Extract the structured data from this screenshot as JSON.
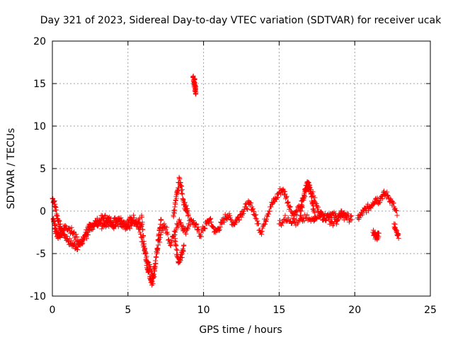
{
  "chart_data": {
    "type": "scatter",
    "title": "Day 321 of 2023, Sidereal Day-to-day VTEC variation (SDTVAR) for receiver ucak",
    "xlabel": "GPS time / hours",
    "ylabel": "SDTVAR / TECUs",
    "xlim": [
      0,
      25
    ],
    "ylim": [
      -10,
      20
    ],
    "xticks": [
      0,
      5,
      10,
      15,
      20,
      25
    ],
    "yticks": [
      -10,
      -5,
      0,
      5,
      10,
      15,
      20
    ],
    "grid": true,
    "marker": "+",
    "colors": {
      "series": "#ff0000",
      "grid": "#a0a0a0",
      "axis": "#000000"
    },
    "series": [
      {
        "name": "SDTVAR",
        "segments": [
          {
            "x": [
              0.0,
              0.1,
              0.2,
              0.3,
              0.4,
              0.5,
              0.6,
              0.8,
              1.0,
              1.2,
              1.4,
              1.6,
              1.8,
              2.0,
              2.2,
              2.4,
              2.6,
              2.8,
              3.0,
              3.2,
              3.4,
              3.6,
              3.8,
              4.0,
              4.2,
              4.4,
              4.6,
              4.8,
              5.0,
              5.2,
              5.4,
              5.6,
              5.8,
              6.0,
              6.2,
              6.4,
              6.6,
              6.8,
              7.0,
              7.2,
              7.4,
              7.6,
              7.8,
              8.0,
              8.2,
              8.4,
              8.6,
              8.8,
              9.0,
              9.2,
              9.4,
              9.6,
              9.8,
              10.0,
              10.2,
              10.4,
              10.6,
              10.8,
              11.0,
              11.2,
              11.4,
              11.6,
              11.8,
              12.0,
              12.2,
              12.4,
              12.6,
              12.8,
              13.0,
              13.2,
              13.4,
              13.6,
              13.8,
              14.0,
              14.2,
              14.4,
              14.6,
              14.8,
              15.0,
              15.2,
              15.4,
              15.6,
              15.8,
              16.0,
              16.2,
              16.4,
              16.6,
              16.8,
              17.0,
              17.2,
              17.4,
              17.6,
              17.8,
              18.0,
              18.2,
              18.4,
              18.6,
              18.8,
              19.0,
              19.2,
              19.4,
              19.6,
              19.8
            ],
            "y": [
              1.5,
              1.2,
              0.5,
              -0.5,
              -1.2,
              -1.8,
              -2.2,
              -2.8,
              -3.3,
              -3.8,
              -4.0,
              -4.2,
              -4.0,
              -3.5,
              -2.5,
              -2.0,
              -1.8,
              -1.5,
              -1.2,
              -1.0,
              -0.8,
              -0.9,
              -1.1,
              -1.3,
              -1.0,
              -0.8,
              -1.2,
              -1.5,
              -1.3,
              -1.0,
              -0.8,
              -1.5,
              -2.5,
              -4.0,
              -5.5,
              -6.5,
              -7.5,
              -6.5,
              -4.0,
              -2.5,
              -1.5,
              -2.5,
              -4.0,
              -3.0,
              -2.0,
              -1.0,
              -1.8,
              -2.5,
              -1.5,
              -1.0,
              -1.5,
              -2.2,
              -2.8,
              -2.0,
              -1.5,
              -1.0,
              -1.8,
              -2.5,
              -2.0,
              -1.5,
              -0.8,
              -0.5,
              -1.0,
              -1.5,
              -1.0,
              -0.5,
              0.0,
              0.5,
              0.8,
              0.5,
              -0.5,
              -1.5,
              -2.5,
              -1.5,
              -0.5,
              0.5,
              1.0,
              1.5,
              2.2,
              2.5,
              2.0,
              1.0,
              0.0,
              -0.5,
              0.0,
              0.5,
              1.5,
              2.5,
              3.0,
              2.0,
              1.0,
              0.0,
              -0.5,
              -0.8,
              -0.5,
              -0.3,
              -0.5,
              -0.8,
              -0.5,
              -0.3,
              -0.5,
              -0.8,
              -1.0
            ]
          },
          {
            "x": [
              20.2,
              20.4,
              20.6,
              20.8,
              21.0,
              21.2,
              21.4,
              21.6,
              21.8,
              22.0,
              22.2,
              22.4,
              22.6,
              22.8
            ],
            "y": [
              -0.8,
              -0.5,
              0.0,
              0.3,
              0.5,
              1.0,
              1.5,
              1.2,
              1.8,
              2.0,
              1.8,
              1.2,
              0.5,
              -0.5
            ]
          },
          {
            "x": [
              0.05,
              0.12,
              0.18,
              0.25,
              0.35,
              0.45,
              0.55,
              0.65,
              0.75,
              0.9,
              1.1,
              1.3,
              1.5,
              1.7,
              1.9,
              2.1,
              2.3,
              2.5,
              2.7,
              2.9,
              3.1,
              3.3,
              3.5,
              3.7,
              3.9,
              4.1,
              4.3,
              4.5,
              4.7,
              4.9,
              5.1,
              5.3,
              5.5,
              5.7,
              5.9
            ],
            "y": [
              -1.0,
              -1.5,
              -2.0,
              -2.5,
              -2.8,
              -3.0,
              -2.6,
              -2.4,
              -2.2,
              -1.8,
              -2.0,
              -2.4,
              -3.0,
              -3.5,
              -3.8,
              -3.2,
              -2.8,
              -2.2,
              -1.6,
              -1.4,
              -1.5,
              -1.8,
              -1.6,
              -1.4,
              -1.6,
              -1.8,
              -1.5,
              -1.2,
              -1.6,
              -1.9,
              -1.7,
              -1.4,
              -1.2,
              -1.0,
              -1.8
            ]
          },
          {
            "x": [
              5.9,
              6.0,
              6.1,
              6.2,
              6.3,
              6.4,
              6.5,
              6.6,
              6.7,
              6.8,
              6.9,
              7.0,
              7.1,
              7.2
            ],
            "y": [
              -0.5,
              -3.0,
              -4.5,
              -5.8,
              -6.8,
              -7.2,
              -8.0,
              -8.5,
              -7.8,
              -6.2,
              -5.0,
              -3.5,
              -2.0,
              -1.0
            ]
          },
          {
            "x": [
              8.0,
              8.1,
              8.2,
              8.3,
              8.4,
              8.5,
              8.6,
              8.7,
              8.8,
              8.9,
              9.0
            ],
            "y": [
              -0.5,
              0.5,
              1.5,
              2.5,
              3.8,
              3.0,
              2.0,
              1.0,
              0.5,
              0.0,
              -0.5
            ]
          },
          {
            "x": [
              8.1,
              8.2,
              8.3,
              8.4,
              8.5,
              8.6,
              8.7
            ],
            "y": [
              -3.5,
              -4.5,
              -5.5,
              -6.0,
              -5.5,
              -5.0,
              -4.0
            ]
          },
          {
            "x": [
              9.3,
              9.35,
              9.4,
              9.45,
              9.5,
              9.42,
              9.38
            ],
            "y": [
              15.8,
              15.3,
              14.8,
              14.3,
              14.0,
              15.5,
              15.0
            ]
          },
          {
            "x": [
              16.4,
              16.5,
              16.6,
              16.7,
              16.8,
              16.9,
              17.0,
              17.1,
              17.2,
              17.3,
              17.4
            ],
            "y": [
              -0.5,
              0.5,
              1.5,
              2.3,
              3.0,
              3.3,
              2.8,
              2.0,
              1.0,
              0.0,
              -0.8
            ]
          },
          {
            "x": [
              15.0,
              15.3,
              15.6,
              15.9,
              16.2,
              16.5,
              16.8,
              17.1,
              17.4,
              17.7,
              18.0,
              18.3,
              18.6,
              18.9,
              19.2,
              19.5
            ],
            "y": [
              -1.5,
              -1.0,
              -0.8,
              -1.2,
              -1.5,
              -1.0,
              -0.8,
              -1.2,
              -0.6,
              -0.3,
              -0.6,
              -1.0,
              -1.5,
              -1.0,
              -0.5,
              -0.8
            ]
          },
          {
            "x": [
              21.2,
              21.3,
              21.4,
              21.5,
              21.6
            ],
            "y": [
              -2.5,
              -2.8,
              -3.0,
              -2.9,
              -2.6
            ]
          },
          {
            "x": [
              22.6,
              22.7,
              22.8,
              22.9
            ],
            "y": [
              -1.5,
              -2.2,
              -2.8,
              -3.2
            ]
          }
        ]
      }
    ]
  }
}
